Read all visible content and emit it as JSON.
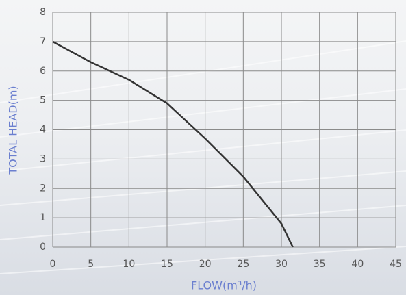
{
  "chart_data": {
    "type": "line",
    "x_label": "FLOW(m³/h)",
    "y_label": "TOTAL HEAD(m)",
    "x": [
      0,
      5,
      10,
      15,
      20,
      25,
      30,
      31.5
    ],
    "series": [
      {
        "color": "#333333",
        "values": [
          7,
          6.3,
          5.7,
          4.9,
          3.7,
          2.4,
          0.8,
          0
        ]
      }
    ],
    "xlim": [
      0,
      45
    ],
    "xticks": [
      0,
      5,
      10,
      15,
      20,
      25,
      30,
      35,
      40,
      45
    ],
    "ylim": [
      0,
      8
    ],
    "yticks": [
      0,
      1,
      2,
      3,
      4,
      5,
      6,
      7,
      8
    ],
    "grid": true
  }
}
